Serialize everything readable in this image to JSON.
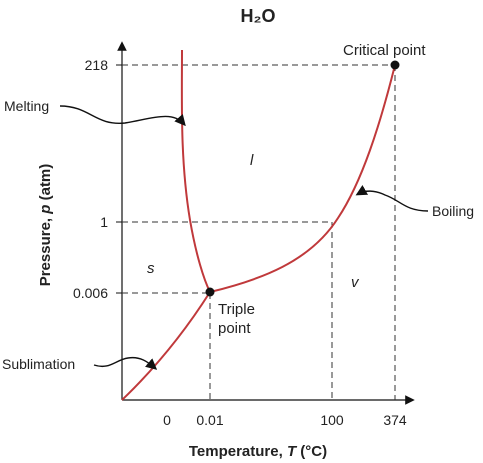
{
  "title": "H₂O",
  "x_axis_label": [
    "Temperature, ",
    "T",
    " (°C)"
  ],
  "y_axis_label": [
    "Pressure, ",
    "p",
    " (atm)"
  ],
  "x_ticks": [
    "0",
    "0.01",
    "100",
    "374"
  ],
  "y_ticks": [
    "218",
    "1",
    "0.006"
  ],
  "regions": [
    "l",
    "s",
    "v"
  ],
  "annotations": {
    "critical_point": "Critical point",
    "triple_point": [
      "Triple",
      "point"
    ],
    "melting": "Melting",
    "boiling": "Boiling",
    "sublimation": "Sublimation"
  }
}
